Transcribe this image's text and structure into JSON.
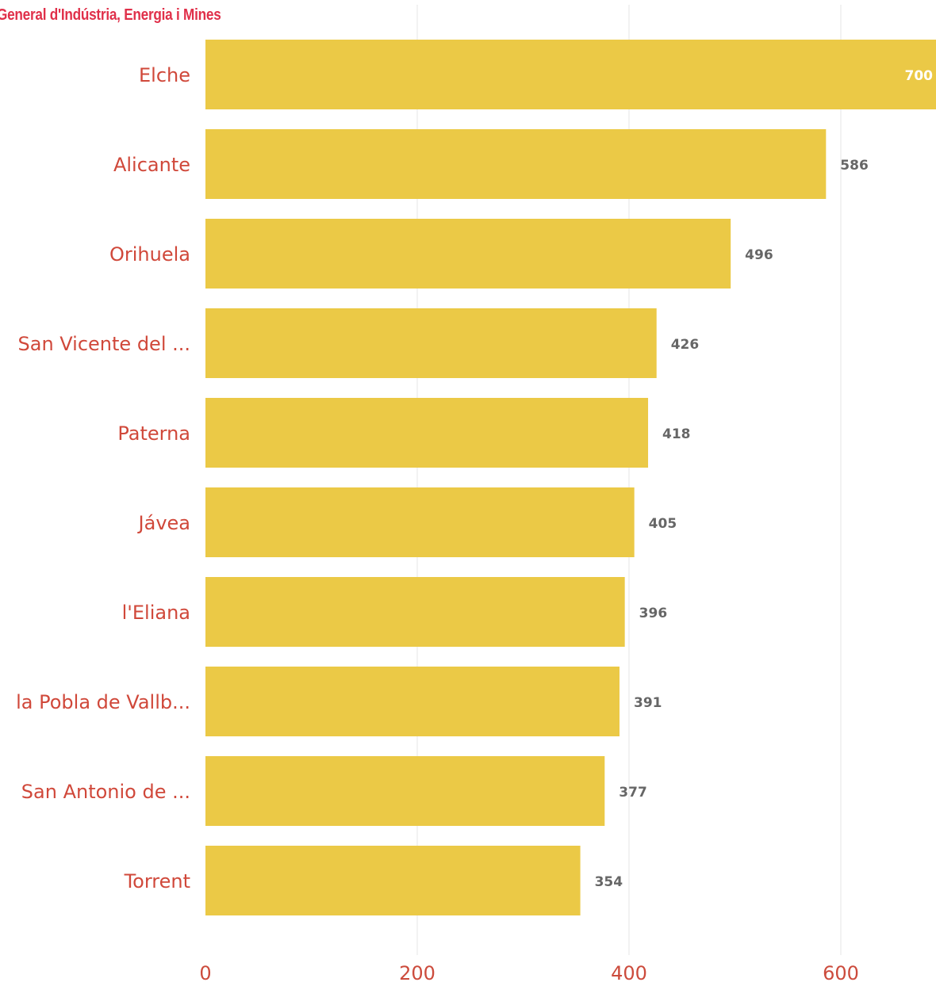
{
  "source": "General d'Indústria, Energia i Mines",
  "colors": {
    "bar": "#ebc946",
    "category_label": "#d0483a",
    "tick_label": "#cc4b3c",
    "value_label": "#666666",
    "value_label_inside": "#ffffff",
    "source": "#e0304a",
    "grid": "#e6e6e6"
  },
  "chart_data": {
    "type": "bar",
    "orientation": "horizontal",
    "title": "",
    "xlabel": "",
    "ylabel": "",
    "categories": [
      "Elche",
      "Alicante",
      "Orihuela",
      "San Vicente del ...",
      "Paterna",
      "Jávea",
      "l'Eliana",
      "la Pobla de Vallb...",
      "San Antonio de ...",
      "Torrent"
    ],
    "values": [
      700,
      586,
      496,
      426,
      418,
      405,
      396,
      391,
      377,
      354
    ],
    "value_labels": [
      "700",
      "586",
      "496",
      "426",
      "418",
      "405",
      "396",
      "391",
      "377",
      "354"
    ],
    "xlim": [
      0,
      690
    ],
    "ticks": [
      0,
      200,
      400,
      600
    ],
    "tick_labels": [
      "0",
      "200",
      "400",
      "600"
    ],
    "grid": true,
    "legend": "none"
  }
}
